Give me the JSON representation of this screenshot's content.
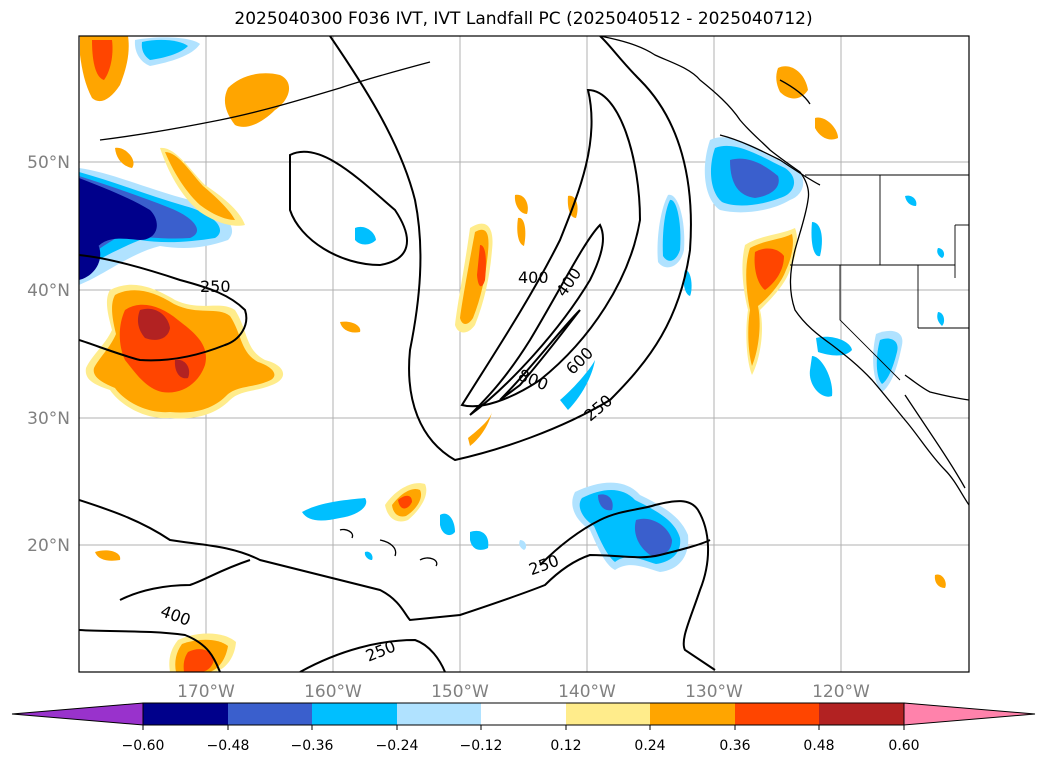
{
  "title": "2025040300 F036 IVT, IVT Landfall PC (2025040512 - 2025040712)",
  "map": {
    "lon_labels": [
      "170°W",
      "160°W",
      "150°W",
      "140°W",
      "130°W",
      "120°W"
    ],
    "lat_labels": [
      "50°N",
      "40°N",
      "30°N",
      "20°N"
    ],
    "grid": true,
    "contour_levels": [
      250,
      400,
      600,
      800
    ],
    "contour_labels": [
      "250",
      "400",
      "400",
      "600",
      "800",
      "250",
      "250",
      "400",
      "250"
    ]
  },
  "colorbar": {
    "colors": [
      "#9932cc",
      "#00008b",
      "#3a5fcd",
      "#00bfff",
      "#b0e2ff",
      "#ffffff",
      "#ffec8b",
      "#ffa500",
      "#ff4500",
      "#b22222",
      "#ff82ab"
    ],
    "ticks": [
      "−0.60",
      "−0.48",
      "−0.36",
      "−0.24",
      "−0.12",
      "0.12",
      "0.24",
      "0.36",
      "0.48",
      "0.60"
    ],
    "extend": "both"
  }
}
